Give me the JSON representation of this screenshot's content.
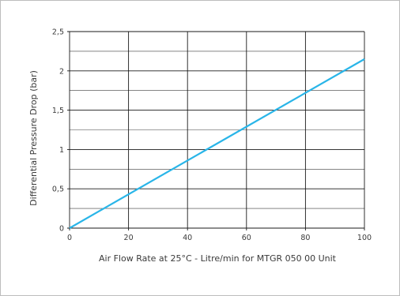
{
  "chart_data": {
    "type": "line",
    "xlabel": "Air Flow Rate at 25°C - Litre/min for MTGR 050 00 Unit",
    "ylabel": "Differential Pressure Drop (bar)",
    "xlim": [
      0,
      100
    ],
    "ylim": [
      0,
      2.5
    ],
    "x_ticks": [
      "0",
      "20",
      "40",
      "60",
      "80",
      "100"
    ],
    "x_tick_values": [
      0,
      20,
      40,
      60,
      80,
      100
    ],
    "y_ticks": [
      "0",
      "0,5",
      "1",
      "1,5",
      "2",
      "2,5"
    ],
    "y_tick_values": [
      0,
      0.5,
      1,
      1.5,
      2,
      2.5
    ],
    "grid": true,
    "series": [
      {
        "color": "#29b5e8",
        "x": [
          0,
          100
        ],
        "y": [
          0,
          2.15
        ]
      }
    ]
  }
}
